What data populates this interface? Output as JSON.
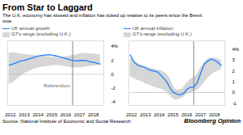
{
  "title": "From Star to Laggard",
  "subtitle": "The U.K. economy has slowed and inflation has ticked up relative to its peers since the Brexit\nvote",
  "source": "Source: National Institute of Economic and Social Research",
  "branding": "Bloomberg Opinion",
  "chart_data": [
    {
      "type": "line",
      "x": [
        2011.9,
        2012.25,
        2012.5,
        2012.75,
        2013.0,
        2013.25,
        2013.5,
        2013.75,
        2014.0,
        2014.25,
        2014.5,
        2014.75,
        2015.0,
        2015.25,
        2015.5,
        2015.75,
        2016.0,
        2016.25,
        2016.5,
        2016.75,
        2017.0,
        2017.25,
        2017.5,
        2017.75,
        2018.0,
        2018.25,
        2018.5
      ],
      "series": [
        {
          "name": "UK annual growth",
          "color": "#2080ff",
          "values": [
            1.3,
            1.5,
            1.7,
            1.9,
            2.0,
            2.15,
            2.3,
            2.45,
            2.6,
            2.7,
            2.75,
            2.8,
            2.75,
            2.65,
            2.55,
            2.4,
            2.25,
            2.1,
            2.0,
            1.9,
            1.95,
            2.0,
            1.95,
            1.8,
            1.7,
            1.6,
            1.45
          ]
        },
        {
          "name": "G7's range (excluding U.K.)",
          "type": "area",
          "color": "#cccccc",
          "upper": [
            3.0,
            3.1,
            3.0,
            2.9,
            2.85,
            2.8,
            2.75,
            2.7,
            2.65,
            2.6,
            2.55,
            2.5,
            2.45,
            2.4,
            2.35,
            2.4,
            2.5,
            2.6,
            2.7,
            2.8,
            2.9,
            3.0,
            3.0,
            2.95,
            2.9,
            2.85,
            2.8
          ],
          "lower": [
            -1.5,
            -1.1,
            -0.7,
            -0.3,
            0.1,
            0.3,
            0.55,
            0.75,
            0.9,
            1.0,
            1.1,
            1.15,
            1.2,
            1.25,
            1.25,
            1.2,
            1.1,
            1.0,
            0.95,
            0.9,
            0.9,
            1.0,
            1.05,
            1.1,
            1.2,
            1.25,
            1.3
          ]
        }
      ],
      "xlim": [
        2011.8,
        2018.75
      ],
      "xticks": [
        2012,
        2013,
        2014,
        2015,
        2016,
        2017,
        2018
      ],
      "ylim": [
        -4.5,
        4.8
      ],
      "yticks": [
        -4,
        -2,
        0,
        2,
        {
          "value": 4,
          "label": "4%"
        }
      ],
      "reference_lines": [
        {
          "axis": "y",
          "value": 0,
          "color": "#bbbbbb"
        },
        {
          "axis": "x",
          "value": 2016.5,
          "color": "#666666"
        }
      ],
      "annotations": [
        {
          "text": "Referendum",
          "x": 2016.5,
          "y": -1.7,
          "color": "#666666"
        }
      ],
      "legend": "top",
      "grid": false
    },
    {
      "type": "line",
      "x": [
        2011.9,
        2012.2,
        2012.5,
        2012.8,
        2013.0,
        2013.3,
        2013.6,
        2013.9,
        2014.2,
        2014.5,
        2014.8,
        2015.0,
        2015.2,
        2015.4,
        2015.6,
        2015.8,
        2016.0,
        2016.25,
        2016.5,
        2016.75,
        2017.0,
        2017.25,
        2017.5,
        2017.75,
        2018.0,
        2018.25,
        2018.5
      ],
      "series": [
        {
          "name": "UK annual inflation",
          "color": "#2080ff",
          "values": [
            3.5,
            2.8,
            2.5,
            2.4,
            2.3,
            2.1,
            2.0,
            1.9,
            1.5,
            1.1,
            0.4,
            0.05,
            -0.1,
            -0.2,
            -0.2,
            -0.05,
            0.3,
            0.5,
            0.5,
            0.9,
            1.8,
            2.6,
            2.9,
            3.1,
            3.0,
            2.8,
            2.5
          ]
        },
        {
          "name": "G7's range (excluding U.K.)",
          "type": "area",
          "color": "#cccccc",
          "upper": [
            3.2,
            2.9,
            2.7,
            2.5,
            2.4,
            2.3,
            2.2,
            2.1,
            2.0,
            1.8,
            1.3,
            0.7,
            0.3,
            0.2,
            0.3,
            0.5,
            0.9,
            1.2,
            1.4,
            1.7,
            2.3,
            2.8,
            3.1,
            3.2,
            3.2,
            3.1,
            3.0
          ],
          "lower": [
            1.5,
            1.3,
            1.1,
            1.0,
            0.8,
            0.7,
            0.5,
            0.4,
            0.3,
            0.1,
            -0.3,
            -0.6,
            -0.7,
            -0.65,
            -0.55,
            -0.4,
            -0.15,
            0.0,
            0.1,
            0.2,
            0.5,
            0.9,
            1.3,
            1.6,
            1.85,
            2.0,
            2.1
          ]
        }
      ],
      "xlim": [
        2011.8,
        2018.75
      ],
      "xticks": [
        2012,
        2013,
        2014,
        2015,
        2016,
        2017,
        2018
      ],
      "ylim": [
        -1.2,
        4.8
      ],
      "yticks": [
        -1,
        0,
        1,
        2,
        3,
        {
          "value": 4,
          "label": "4%"
        }
      ],
      "reference_lines": [
        {
          "axis": "y",
          "value": 0,
          "color": "#bbbbbb"
        },
        {
          "axis": "x",
          "value": 2016.5,
          "color": "#666666"
        }
      ],
      "legend": "top",
      "grid": false
    }
  ]
}
